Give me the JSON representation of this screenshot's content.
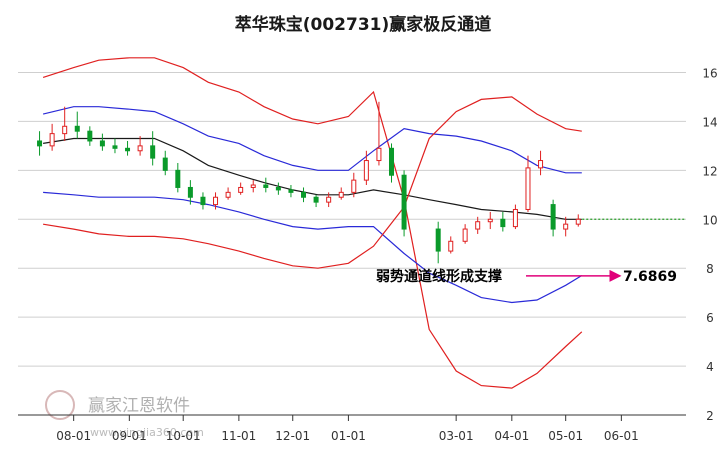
{
  "chart_data": {
    "type": "line",
    "title": "萃华珠宝(002731)赢家极反通道",
    "xlabel": "",
    "ylabel": "",
    "ylim": [
      2,
      17
    ],
    "yticks": [
      2,
      4,
      6,
      8,
      10,
      12,
      14,
      16
    ],
    "x_tick_labels": [
      "08-01",
      "09-01",
      "10-01",
      "11-01",
      "12-01",
      "01-01",
      "03-01",
      "04-01",
      "05-01",
      "06-01"
    ],
    "grid": true,
    "legend": "none",
    "annotation": {
      "text": "弱势通道线形成支撑",
      "value_label": "7.6869",
      "value": 7.6869,
      "arrow_color": "#e0007a"
    },
    "watermark": {
      "brand": "赢家江恩软件",
      "url": "www.yingjia360.com"
    },
    "series": [
      {
        "color": "#e02020",
        "x": [
          "07-15",
          "08-01",
          "08-15",
          "09-01",
          "09-15",
          "10-01",
          "10-15",
          "11-01",
          "11-15",
          "12-01",
          "12-15",
          "01-01",
          "01-15",
          "02-01",
          "02-15",
          "03-01",
          "03-15",
          "04-01",
          "04-15",
          "05-01",
          "05-10"
        ],
        "values": [
          15.8,
          16.2,
          16.5,
          16.6,
          16.6,
          16.2,
          15.6,
          15.2,
          14.6,
          14.1,
          13.9,
          14.2,
          15.2,
          10.8,
          5.5,
          3.8,
          3.2,
          3.1,
          3.7,
          4.8,
          5.4
        ]
      },
      {
        "color": "#2a2ad8",
        "x": [
          "07-15",
          "08-01",
          "08-15",
          "09-01",
          "09-15",
          "10-01",
          "10-15",
          "11-01",
          "11-15",
          "12-01",
          "12-15",
          "01-01",
          "01-15",
          "02-01",
          "02-15",
          "03-01",
          "03-15",
          "04-01",
          "04-15",
          "05-01",
          "05-10"
        ],
        "values": [
          14.3,
          14.6,
          14.6,
          14.5,
          14.4,
          13.9,
          13.4,
          13.1,
          12.6,
          12.2,
          12.0,
          12.0,
          12.8,
          13.7,
          13.5,
          13.4,
          13.2,
          12.8,
          12.2,
          11.9,
          11.9
        ]
      },
      {
        "color": "#1a1a1a",
        "x": [
          "07-15",
          "08-01",
          "08-15",
          "09-01",
          "09-15",
          "10-01",
          "10-15",
          "11-01",
          "11-15",
          "12-01",
          "12-15",
          "01-01",
          "01-15",
          "02-01",
          "02-15",
          "03-01",
          "03-15",
          "04-01",
          "04-15",
          "05-01",
          "05-10"
        ],
        "values": [
          13.1,
          13.3,
          13.3,
          13.3,
          13.3,
          12.8,
          12.2,
          11.8,
          11.5,
          11.2,
          11.0,
          11.0,
          11.2,
          11.0,
          10.8,
          10.6,
          10.4,
          10.3,
          10.2,
          10.0,
          10.0
        ]
      },
      {
        "color": "#2a2ad8",
        "x": [
          "07-15",
          "08-01",
          "08-15",
          "09-01",
          "09-15",
          "10-01",
          "10-15",
          "11-01",
          "11-15",
          "12-01",
          "12-15",
          "01-01",
          "01-15",
          "02-01",
          "02-15",
          "03-01",
          "03-15",
          "04-01",
          "04-15",
          "05-01",
          "05-10"
        ],
        "values": [
          11.1,
          11.0,
          10.9,
          10.9,
          10.9,
          10.8,
          10.6,
          10.3,
          10.0,
          9.7,
          9.6,
          9.7,
          9.7,
          8.6,
          7.8,
          7.3,
          6.8,
          6.6,
          6.7,
          7.3,
          7.7
        ]
      },
      {
        "color": "#e02020",
        "x": [
          "07-15",
          "08-01",
          "08-15",
          "09-01",
          "09-15",
          "10-01",
          "10-15",
          "11-01",
          "11-15",
          "12-01",
          "12-15",
          "01-01",
          "01-15",
          "02-01",
          "02-15",
          "03-01",
          "03-15",
          "04-01",
          "04-15",
          "05-01",
          "05-10"
        ],
        "values": [
          9.8,
          9.6,
          9.4,
          9.3,
          9.3,
          9.2,
          9.0,
          8.7,
          8.4,
          8.1,
          8.0,
          8.2,
          8.9,
          10.5,
          13.3,
          14.4,
          14.9,
          15.0,
          14.3,
          13.7,
          13.6
        ]
      }
    ],
    "candles": {
      "x": [
        "07-13",
        "07-20",
        "07-27",
        "08-03",
        "08-10",
        "08-17",
        "08-24",
        "08-31",
        "09-07",
        "09-14",
        "09-21",
        "09-28",
        "10-05",
        "10-12",
        "10-19",
        "10-26",
        "11-02",
        "11-09",
        "11-16",
        "11-23",
        "11-30",
        "12-07",
        "12-14",
        "12-21",
        "12-28",
        "01-04",
        "01-11",
        "01-18",
        "01-25",
        "02-01",
        "02-20",
        "02-27",
        "03-06",
        "03-13",
        "03-20",
        "03-27",
        "04-03",
        "04-10",
        "04-17",
        "04-24",
        "05-01",
        "05-08"
      ],
      "open": [
        13.2,
        13.0,
        13.5,
        13.8,
        13.6,
        13.2,
        13.0,
        12.9,
        12.8,
        13.0,
        12.5,
        12.0,
        11.3,
        10.9,
        10.6,
        10.9,
        11.1,
        11.3,
        11.4,
        11.3,
        11.2,
        11.1,
        10.9,
        10.7,
        10.9,
        11.1,
        11.6,
        12.4,
        12.9,
        11.8,
        9.6,
        8.7,
        9.1,
        9.6,
        9.9,
        10.0,
        9.7,
        10.4,
        12.1,
        10.6,
        9.6,
        9.8
      ],
      "close": [
        13.0,
        13.5,
        13.8,
        13.6,
        13.2,
        13.0,
        12.9,
        12.8,
        13.0,
        12.5,
        12.0,
        11.3,
        10.9,
        10.6,
        10.9,
        11.1,
        11.3,
        11.4,
        11.3,
        11.2,
        11.1,
        10.9,
        10.7,
        10.9,
        11.1,
        11.6,
        12.4,
        12.9,
        11.8,
        9.6,
        8.7,
        9.1,
        9.6,
        9.9,
        10.0,
        9.7,
        10.4,
        12.1,
        12.4,
        9.6,
        9.8,
        10.0
      ],
      "high": [
        13.6,
        13.9,
        14.6,
        14.4,
        13.8,
        13.5,
        13.3,
        13.2,
        13.4,
        13.6,
        12.8,
        12.3,
        11.6,
        11.1,
        11.1,
        11.3,
        11.5,
        11.6,
        11.7,
        11.5,
        11.4,
        11.3,
        11.0,
        11.1,
        11.3,
        11.9,
        12.8,
        14.8,
        13.1,
        12.0,
        9.9,
        9.3,
        9.8,
        10.1,
        10.3,
        10.3,
        10.6,
        12.6,
        12.8,
        10.8,
        10.1,
        10.2
      ],
      "low": [
        12.6,
        12.8,
        13.2,
        13.3,
        13.0,
        12.8,
        12.7,
        12.6,
        12.6,
        12.2,
        11.8,
        11.1,
        10.6,
        10.4,
        10.4,
        10.8,
        11.0,
        11.1,
        11.1,
        11.0,
        10.9,
        10.7,
        10.5,
        10.5,
        10.8,
        10.9,
        11.4,
        12.2,
        11.5,
        9.3,
        8.2,
        8.6,
        9.0,
        9.4,
        9.6,
        9.5,
        9.6,
        10.3,
        11.8,
        9.3,
        9.3,
        9.7
      ]
    },
    "last_close_line": 10.0
  }
}
